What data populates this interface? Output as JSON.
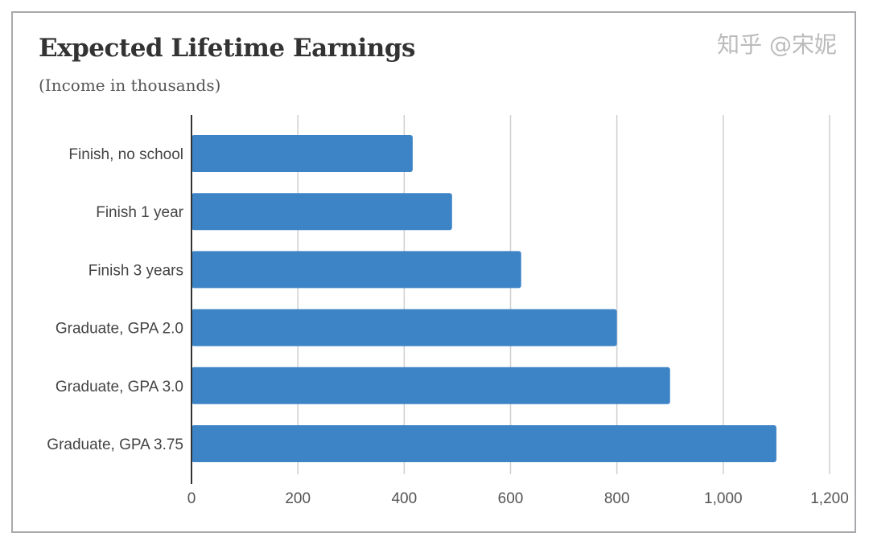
{
  "chart_data": {
    "type": "bar",
    "orientation": "horizontal",
    "title": "Expected Lifetime Earnings",
    "subtitle": "(Income in thousands)",
    "categories": [
      "Finish, no school",
      "Finish 1 year",
      "Finish 3 years",
      "Graduate, GPA 2.0",
      "Graduate, GPA 3.0",
      "Graduate, GPA 3.75"
    ],
    "values": [
      416,
      490,
      620,
      800,
      900,
      1100
    ],
    "xlabel": "",
    "ylabel": "",
    "xlim": [
      0,
      1200
    ],
    "xticks": [
      0,
      200,
      400,
      600,
      800,
      1000,
      1200
    ],
    "xtick_labels": [
      "0",
      "200",
      "400",
      "600",
      "800",
      "1,000",
      "1,200"
    ],
    "grid": true,
    "bar_color": "#3d84c6"
  },
  "watermark": "知乎 @宋妮"
}
